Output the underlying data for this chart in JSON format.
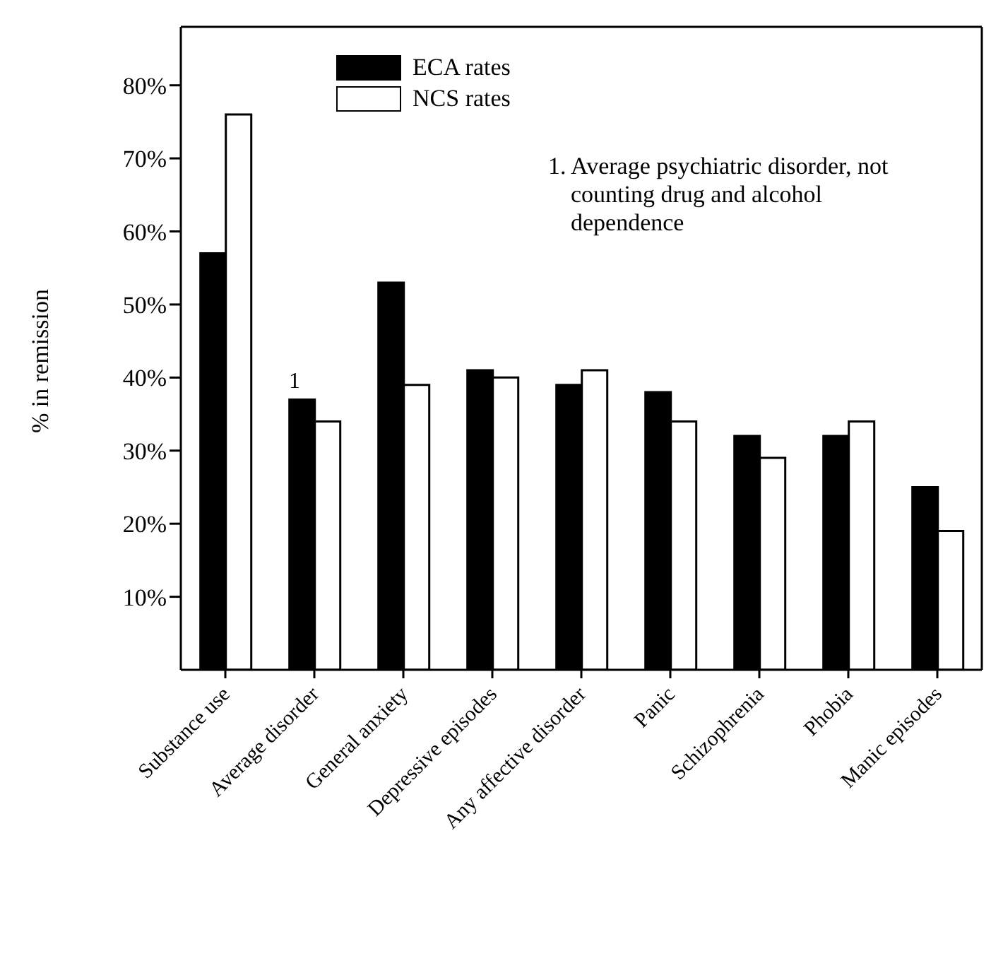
{
  "chart_data": {
    "type": "bar",
    "ylabel": "% in remission",
    "categories": [
      "Substance use",
      "Average disorder",
      "General anxiety",
      "Depressive episodes",
      "Any affective disorder",
      "Panic",
      "Schizophrenia",
      "Phobia",
      "Manic episodes"
    ],
    "series": [
      {
        "name": "ECA rates",
        "color": "#000000",
        "values": [
          57,
          37,
          53,
          41,
          39,
          38,
          32,
          32,
          25
        ]
      },
      {
        "name": "NCS rates",
        "color": "#ffffff",
        "values": [
          76,
          34,
          39,
          40,
          41,
          34,
          29,
          34,
          19
        ]
      }
    ],
    "ylim": [
      0,
      88
    ],
    "yticks": [
      {
        "value": 10,
        "label": "10%"
      },
      {
        "value": 20,
        "label": "20%"
      },
      {
        "value": 30,
        "label": "30%"
      },
      {
        "value": 40,
        "label": "40%"
      },
      {
        "value": 50,
        "label": "50%"
      },
      {
        "value": 60,
        "label": "60%"
      },
      {
        "value": 70,
        "label": "70%"
      },
      {
        "value": 80,
        "label": "80%"
      }
    ],
    "annotations": [
      {
        "text": "1",
        "x": "Average disorder",
        "y": 37
      },
      "1. Average psychiatric disorder, not counting drug and alcohol dependence"
    ],
    "legend": "top left",
    "grid": false
  }
}
